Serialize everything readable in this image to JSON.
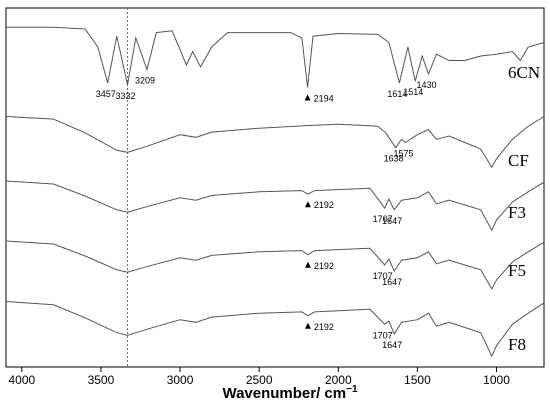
{
  "chart_data": {
    "type": "line",
    "title": "",
    "xlabel": "Wavenumber/ cm",
    "xlabel_superscript": "−1",
    "ylabel": "",
    "xlim": [
      4100,
      700
    ],
    "x_reversed": true,
    "x_ticks": [
      4000,
      3500,
      3000,
      2500,
      2000,
      1500,
      1000
    ],
    "grid": false,
    "reference_line": {
      "x": 3332,
      "color": "#3a6fd8",
      "style": "dotted"
    },
    "line_color": "#555555",
    "series": [
      {
        "name": "6CN",
        "points": [
          [
            4100,
            0.92
          ],
          [
            3800,
            0.92
          ],
          [
            3600,
            0.9
          ],
          [
            3520,
            0.7
          ],
          [
            3457,
            0.3
          ],
          [
            3400,
            0.82
          ],
          [
            3332,
            0.28
          ],
          [
            3280,
            0.8
          ],
          [
            3209,
            0.45
          ],
          [
            3150,
            0.86
          ],
          [
            3050,
            0.88
          ],
          [
            2960,
            0.5
          ],
          [
            2920,
            0.65
          ],
          [
            2870,
            0.48
          ],
          [
            2800,
            0.7
          ],
          [
            2700,
            0.86
          ],
          [
            2300,
            0.86
          ],
          [
            2230,
            0.8
          ],
          [
            2194,
            0.25
          ],
          [
            2160,
            0.82
          ],
          [
            2000,
            0.85
          ],
          [
            1750,
            0.84
          ],
          [
            1680,
            0.75
          ],
          [
            1614,
            0.3
          ],
          [
            1560,
            0.7
          ],
          [
            1514,
            0.32
          ],
          [
            1470,
            0.6
          ],
          [
            1430,
            0.4
          ],
          [
            1380,
            0.62
          ],
          [
            1300,
            0.55
          ],
          [
            1200,
            0.55
          ],
          [
            1100,
            0.6
          ],
          [
            1000,
            0.62
          ],
          [
            900,
            0.65
          ],
          [
            850,
            0.55
          ],
          [
            800,
            0.7
          ],
          [
            700,
            0.75
          ]
        ],
        "peaks": [
          {
            "x": 3457,
            "label": "3457"
          },
          {
            "x": 3332,
            "label": "3332"
          },
          {
            "x": 3209,
            "label": "3209"
          },
          {
            "x": 2194,
            "label": "2194"
          },
          {
            "x": 1614,
            "label": "1614"
          },
          {
            "x": 1514,
            "label": "1514"
          },
          {
            "x": 1430,
            "label": "1430"
          }
        ]
      },
      {
        "name": "CF",
        "points": [
          [
            4100,
            0.9
          ],
          [
            3800,
            0.86
          ],
          [
            3600,
            0.65
          ],
          [
            3400,
            0.38
          ],
          [
            3332,
            0.35
          ],
          [
            3200,
            0.45
          ],
          [
            3000,
            0.62
          ],
          [
            2900,
            0.58
          ],
          [
            2800,
            0.66
          ],
          [
            2500,
            0.72
          ],
          [
            2200,
            0.76
          ],
          [
            2000,
            0.78
          ],
          [
            1750,
            0.75
          ],
          [
            1700,
            0.65
          ],
          [
            1638,
            0.42
          ],
          [
            1600,
            0.55
          ],
          [
            1575,
            0.5
          ],
          [
            1500,
            0.62
          ],
          [
            1430,
            0.7
          ],
          [
            1380,
            0.55
          ],
          [
            1300,
            0.6
          ],
          [
            1200,
            0.5
          ],
          [
            1100,
            0.4
          ],
          [
            1030,
            0.12
          ],
          [
            1000,
            0.25
          ],
          [
            900,
            0.55
          ],
          [
            800,
            0.75
          ],
          [
            700,
            0.9
          ]
        ],
        "peaks": [
          {
            "x": 1638,
            "label": "1638"
          },
          {
            "x": 1575,
            "label": "1575"
          }
        ]
      },
      {
        "name": "F3",
        "points": [
          [
            4100,
            0.9
          ],
          [
            3800,
            0.85
          ],
          [
            3600,
            0.65
          ],
          [
            3400,
            0.42
          ],
          [
            3332,
            0.38
          ],
          [
            3200,
            0.48
          ],
          [
            3000,
            0.62
          ],
          [
            2900,
            0.58
          ],
          [
            2800,
            0.66
          ],
          [
            2500,
            0.72
          ],
          [
            2230,
            0.74
          ],
          [
            2192,
            0.68
          ],
          [
            2150,
            0.74
          ],
          [
            1800,
            0.78
          ],
          [
            1707,
            0.45
          ],
          [
            1680,
            0.6
          ],
          [
            1647,
            0.42
          ],
          [
            1600,
            0.58
          ],
          [
            1500,
            0.62
          ],
          [
            1430,
            0.72
          ],
          [
            1380,
            0.52
          ],
          [
            1300,
            0.58
          ],
          [
            1200,
            0.5
          ],
          [
            1100,
            0.42
          ],
          [
            1030,
            0.08
          ],
          [
            1000,
            0.25
          ],
          [
            900,
            0.55
          ],
          [
            800,
            0.72
          ],
          [
            700,
            0.88
          ]
        ],
        "peaks": [
          {
            "x": 2192,
            "label": "2192"
          },
          {
            "x": 1707,
            "label": "1707"
          },
          {
            "x": 1647,
            "label": "1647"
          }
        ]
      },
      {
        "name": "F5",
        "points": [
          [
            4100,
            0.9
          ],
          [
            3800,
            0.85
          ],
          [
            3600,
            0.65
          ],
          [
            3400,
            0.42
          ],
          [
            3332,
            0.38
          ],
          [
            3200,
            0.48
          ],
          [
            3000,
            0.62
          ],
          [
            2900,
            0.58
          ],
          [
            2800,
            0.66
          ],
          [
            2500,
            0.72
          ],
          [
            2230,
            0.74
          ],
          [
            2192,
            0.67
          ],
          [
            2150,
            0.74
          ],
          [
            1800,
            0.78
          ],
          [
            1707,
            0.5
          ],
          [
            1680,
            0.6
          ],
          [
            1647,
            0.4
          ],
          [
            1600,
            0.58
          ],
          [
            1500,
            0.62
          ],
          [
            1430,
            0.72
          ],
          [
            1380,
            0.52
          ],
          [
            1300,
            0.58
          ],
          [
            1200,
            0.5
          ],
          [
            1100,
            0.42
          ],
          [
            1030,
            0.1
          ],
          [
            1000,
            0.25
          ],
          [
            900,
            0.55
          ],
          [
            800,
            0.72
          ],
          [
            700,
            0.88
          ]
        ],
        "peaks": [
          {
            "x": 2192,
            "label": "2192"
          },
          {
            "x": 1707,
            "label": "1707"
          },
          {
            "x": 1647,
            "label": "1647"
          }
        ]
      },
      {
        "name": "F8",
        "points": [
          [
            4100,
            0.9
          ],
          [
            3800,
            0.85
          ],
          [
            3600,
            0.65
          ],
          [
            3400,
            0.42
          ],
          [
            3332,
            0.38
          ],
          [
            3200,
            0.48
          ],
          [
            3000,
            0.62
          ],
          [
            2900,
            0.58
          ],
          [
            2800,
            0.66
          ],
          [
            2500,
            0.72
          ],
          [
            2230,
            0.74
          ],
          [
            2192,
            0.68
          ],
          [
            2150,
            0.74
          ],
          [
            1800,
            0.78
          ],
          [
            1707,
            0.55
          ],
          [
            1680,
            0.6
          ],
          [
            1647,
            0.4
          ],
          [
            1600,
            0.58
          ],
          [
            1500,
            0.62
          ],
          [
            1430,
            0.72
          ],
          [
            1380,
            0.52
          ],
          [
            1300,
            0.58
          ],
          [
            1200,
            0.5
          ],
          [
            1100,
            0.42
          ],
          [
            1030,
            0.06
          ],
          [
            1000,
            0.22
          ],
          [
            900,
            0.55
          ],
          [
            800,
            0.72
          ],
          [
            700,
            0.88
          ]
        ],
        "peaks": [
          {
            "x": 2192,
            "label": "2192"
          },
          {
            "x": 1707,
            "label": "1707"
          },
          {
            "x": 1647,
            "label": "1647"
          }
        ]
      }
    ]
  }
}
